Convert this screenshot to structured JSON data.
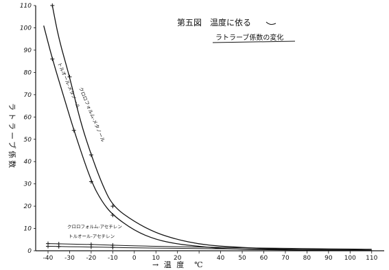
{
  "chart_data": {
    "type": "line",
    "title_line1": "第五図　温度に依る",
    "title_line2": "ラトラーブ係数の変化",
    "xlabel": "→ 温 度　℃",
    "ylabel": "ラトラーブ係数",
    "xlim": [
      -45,
      112
    ],
    "ylim": [
      0,
      110
    ],
    "x_ticks": [
      -40,
      -30,
      -20,
      -10,
      0,
      10,
      20,
      30,
      40,
      50,
      60,
      70,
      80,
      90,
      100,
      110
    ],
    "x_tick_labels": [
      "-40",
      "-30",
      "-20",
      "-10",
      "0",
      "10",
      "20",
      "",
      "40",
      "50",
      "60",
      "70",
      "80",
      "90",
      "100",
      "110"
    ],
    "y_ticks": [
      0,
      10,
      20,
      30,
      40,
      50,
      60,
      70,
      80,
      90,
      100,
      110
    ],
    "y_tick_labels": [
      "0",
      "10",
      "20",
      "30",
      "40",
      "50",
      "60",
      "70",
      "80",
      "90",
      "100",
      "110"
    ],
    "series": [
      {
        "name": "クロロフォルム-メタノール",
        "x": [
          -38,
          -35,
          -30,
          -25,
          -20,
          -15,
          -10,
          0,
          10,
          20,
          30,
          40,
          60,
          80,
          100,
          110
        ],
        "y": [
          110,
          95,
          78,
          58,
          43,
          30,
          20,
          13,
          8,
          5,
          3,
          2,
          1,
          0.5,
          0.3,
          0.2
        ],
        "markers_x": [
          -38,
          -30,
          -20,
          -10
        ],
        "markers_y": [
          110,
          78,
          43,
          20
        ]
      },
      {
        "name": "トルオール-メタノール",
        "x": [
          -42,
          -38,
          -33,
          -28,
          -20,
          -15,
          -10,
          0,
          10,
          20,
          30,
          40,
          60,
          80,
          100,
          110
        ],
        "y": [
          101,
          86,
          70,
          54,
          31,
          22,
          16,
          9,
          5,
          3,
          2,
          1,
          0.5,
          0.3,
          0.2,
          0.1
        ],
        "markers_x": [
          -38,
          -28,
          -20,
          -10
        ],
        "markers_y": [
          86,
          54,
          31,
          16
        ]
      },
      {
        "name": "クロロフォルム-アセチレン",
        "x": [
          -40,
          -30,
          -20,
          -10,
          0,
          20,
          40,
          60,
          80,
          100,
          110
        ],
        "y": [
          3.2,
          3.0,
          2.8,
          2.5,
          2.2,
          1.8,
          1.5,
          1.2,
          1.0,
          0.8,
          0.7
        ],
        "markers_x": [
          -40,
          -35,
          -20,
          -10
        ],
        "markers_y": [
          3.2,
          3.1,
          2.8,
          2.5
        ]
      },
      {
        "name": "トルオール-アセチレン",
        "x": [
          -40,
          -30,
          -20,
          -10,
          0,
          20,
          40,
          60,
          80,
          100,
          110
        ],
        "y": [
          2.0,
          1.8,
          1.7,
          1.5,
          1.3,
          1.1,
          0.9,
          0.7,
          0.6,
          0.5,
          0.4
        ],
        "markers_x": [
          -40,
          -35,
          -20,
          -10
        ],
        "markers_y": [
          2.0,
          1.9,
          1.7,
          1.5
        ]
      }
    ],
    "grid": false,
    "legend": "inline labels along curves"
  }
}
